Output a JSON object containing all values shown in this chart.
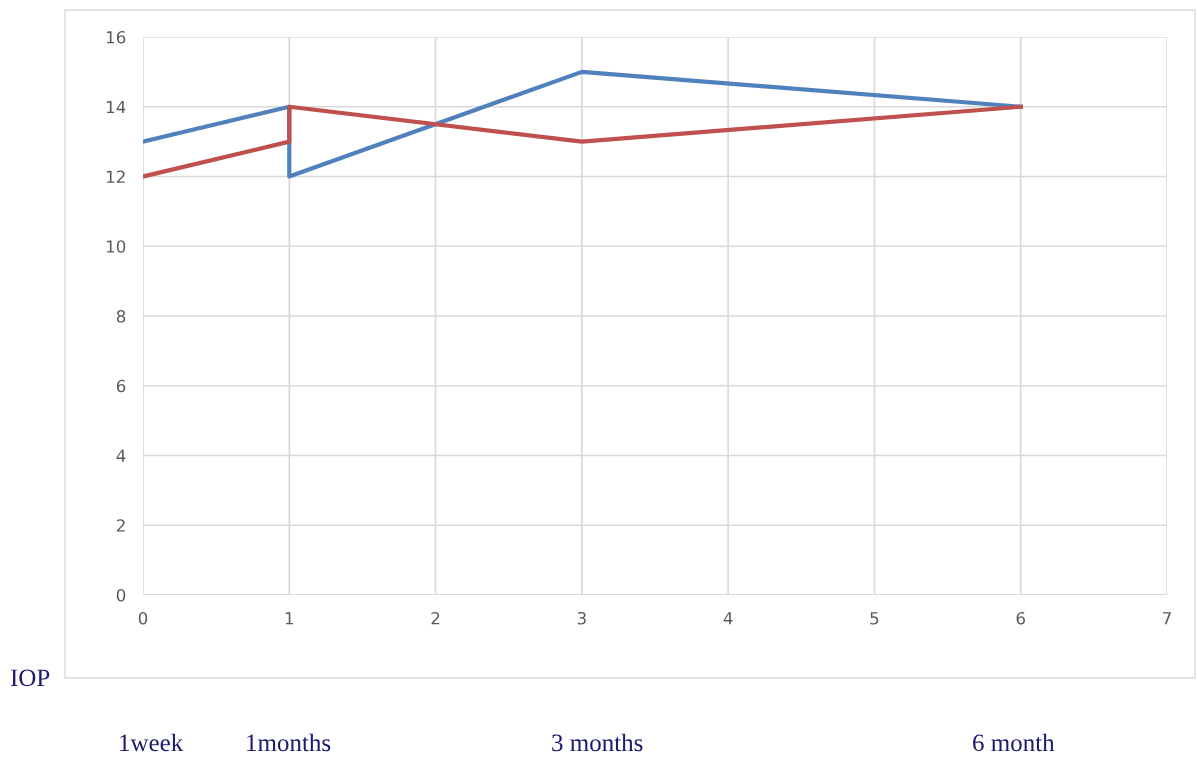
{
  "chart_data": {
    "type": "line",
    "series": [
      {
        "color": "#4f81bd",
        "x": [
          0,
          1,
          1,
          3,
          6
        ],
        "values": [
          13,
          14,
          12,
          15,
          14
        ]
      },
      {
        "color": "#c0504d",
        "x": [
          0,
          1,
          1,
          3,
          6
        ],
        "values": [
          12,
          13,
          14,
          13,
          14
        ]
      }
    ],
    "xlim": [
      0,
      7
    ],
    "xticks": [
      0,
      1,
      2,
      3,
      4,
      5,
      6,
      7
    ],
    "ylim": [
      0,
      16
    ],
    "yticks": [
      0,
      2,
      4,
      6,
      8,
      10,
      12,
      14,
      16
    ],
    "grid": true,
    "marker": "none",
    "line_style": "solid",
    "annotations": [
      "IOP",
      "1week",
      "1months",
      "3 months",
      "6 month"
    ]
  }
}
